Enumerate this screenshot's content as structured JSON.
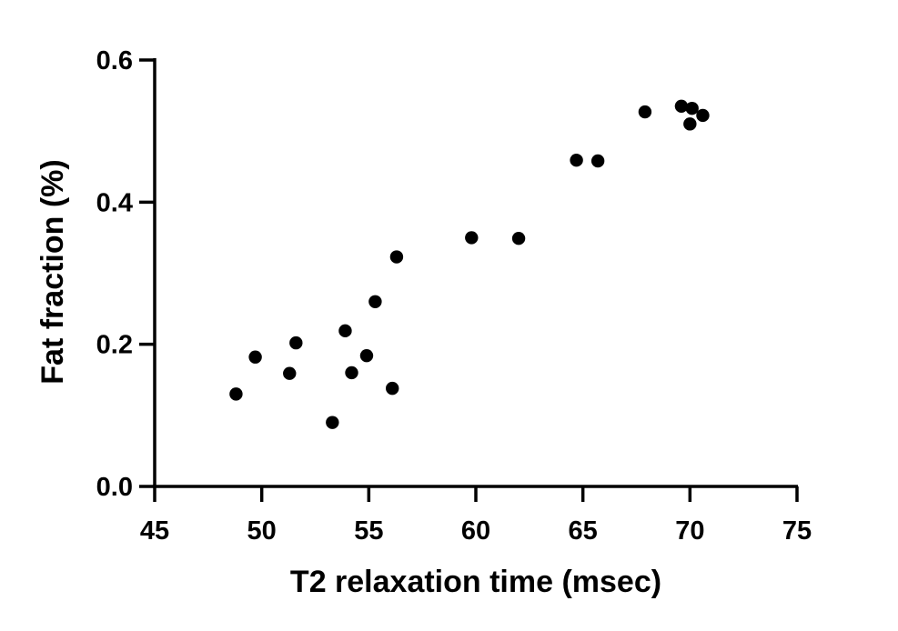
{
  "chart_data": {
    "type": "scatter",
    "xlabel": "T2 relaxation time (msec)",
    "ylabel": "Fat fraction (%)",
    "xlim": [
      45,
      75
    ],
    "ylim": [
      0.0,
      0.6
    ],
    "xticks": [
      45,
      50,
      55,
      60,
      65,
      70,
      75
    ],
    "yticks": [
      0.0,
      0.2,
      0.4,
      0.6
    ],
    "xtick_labels": [
      "45",
      "50",
      "55",
      "60",
      "65",
      "70",
      "75"
    ],
    "ytick_labels": [
      "0.0",
      "0.2",
      "0.4",
      "0.6"
    ],
    "grid": false,
    "marker_color": "#000000",
    "points": [
      {
        "x": 48.8,
        "y": 0.13
      },
      {
        "x": 49.7,
        "y": 0.182
      },
      {
        "x": 51.3,
        "y": 0.159
      },
      {
        "x": 51.6,
        "y": 0.202
      },
      {
        "x": 53.3,
        "y": 0.09
      },
      {
        "x": 53.9,
        "y": 0.219
      },
      {
        "x": 54.2,
        "y": 0.16
      },
      {
        "x": 54.9,
        "y": 0.184
      },
      {
        "x": 55.3,
        "y": 0.26
      },
      {
        "x": 56.1,
        "y": 0.138
      },
      {
        "x": 56.3,
        "y": 0.323
      },
      {
        "x": 59.8,
        "y": 0.35
      },
      {
        "x": 62.0,
        "y": 0.349
      },
      {
        "x": 64.7,
        "y": 0.459
      },
      {
        "x": 65.7,
        "y": 0.458
      },
      {
        "x": 67.9,
        "y": 0.527
      },
      {
        "x": 69.6,
        "y": 0.535
      },
      {
        "x": 70.0,
        "y": 0.51
      },
      {
        "x": 70.1,
        "y": 0.532
      },
      {
        "x": 70.6,
        "y": 0.522
      }
    ]
  }
}
